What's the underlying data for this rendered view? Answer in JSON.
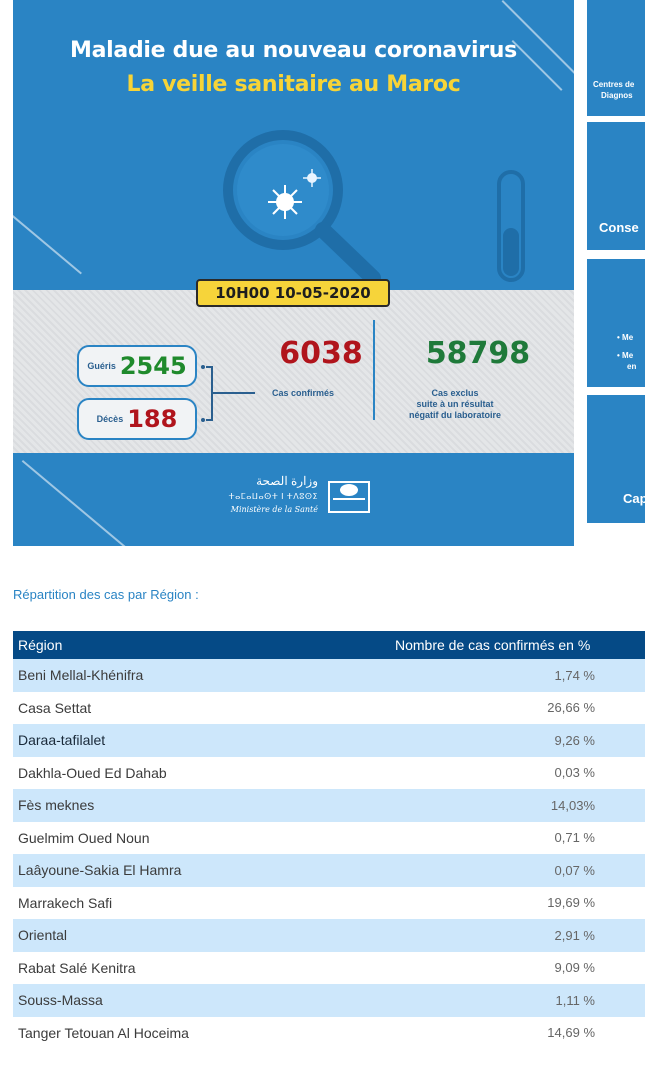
{
  "banner": {
    "title_line1": "Maladie due au nouveau coronavirus",
    "title_line2": "La veille sanitaire au Maroc",
    "datetime": "10H00  10-05-2020",
    "recovered_label": "Guéris",
    "recovered_value": "2545",
    "deaths_label": "Décès",
    "deaths_value": "188",
    "confirmed_value": "6038",
    "confirmed_label": "Cas confirmés",
    "excluded_value": "58798",
    "excluded_label_1": "Cas exclus",
    "excluded_label_2": "suite à un résultat",
    "excluded_label_3": "négatif du laboratoire",
    "ministry_ar": "وزارة الصحة",
    "ministry_tf": "ⵜⴰⵎⴰⵡⴰⵙⵜ ⵏ ⵜⴷⵓⵙⵉ",
    "ministry_fr": "Ministère de la Santé"
  },
  "thumbs": {
    "t1_line1": "Centres de",
    "t1_line2": "Diagnos",
    "t2": "Conse",
    "t3_line1": "• Me",
    "t3_line2": "• Me",
    "t3_line3": "en",
    "t4": "Cap"
  },
  "section_heading": "Répartition des cas par Région :",
  "table": {
    "header_region": "Région",
    "header_value": "Nombre de cas confirmés en %",
    "rows": [
      {
        "region": "Beni Mellal-Khénifra",
        "value": "1,74 %"
      },
      {
        "region": "Casa Settat",
        "value": "26,66 %"
      },
      {
        "region": "Daraa-tafilalet",
        "value": "9,26 %"
      },
      {
        "region": "Dakhla-Oued Ed Dahab",
        "value": "0,03 %"
      },
      {
        "region": "Fès meknes",
        "value": "14,03%"
      },
      {
        "region": "Guelmim Oued Noun",
        "value": "0,71 %"
      },
      {
        "region": "Laâyoune-Sakia El Hamra",
        "value": "0,07 %"
      },
      {
        "region": "Marrakech Safi",
        "value": "19,69 %"
      },
      {
        "region": "Oriental",
        "value": "2,91 %"
      },
      {
        "region": "Rabat Salé Kenitra",
        "value": "9,09 %"
      },
      {
        "region": "Souss-Massa",
        "value": "1,11 %"
      },
      {
        "region": "Tanger Tetouan Al Hoceima",
        "value": "14,69 %"
      }
    ]
  },
  "colors": {
    "banner_blue": "#2a84c4",
    "title_yellow": "#f7d437",
    "header_navy": "#054a86",
    "row_blue": "#cde7fb",
    "deaths_red": "#b0141c",
    "recovered_green": "#1f8a2c"
  }
}
